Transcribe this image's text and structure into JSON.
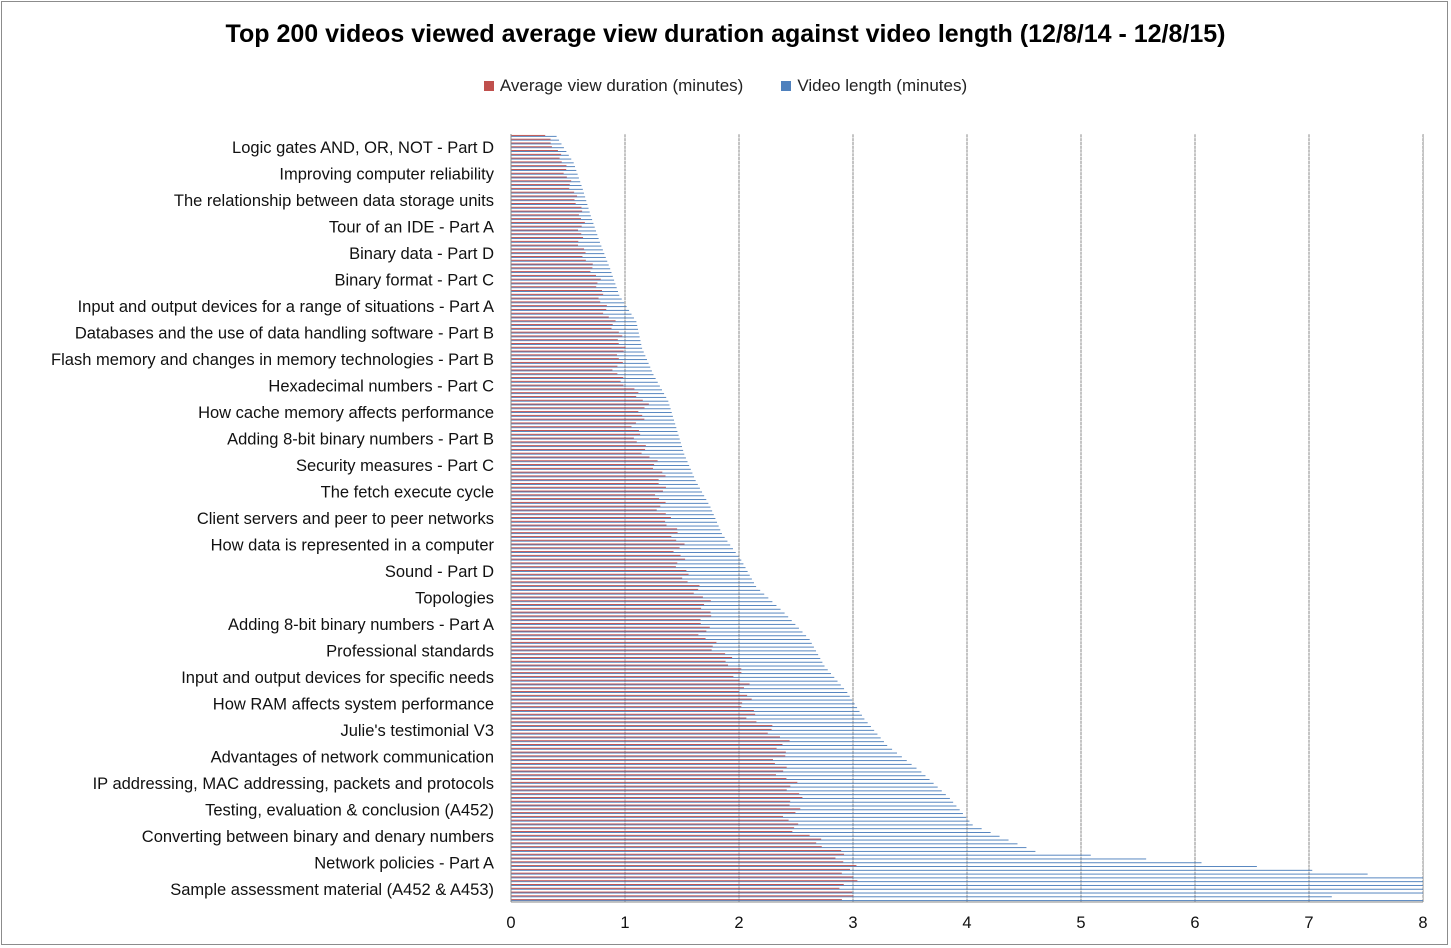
{
  "chart_data": {
    "type": "bar",
    "orientation": "horizontal",
    "title": "Top 200 videos viewed average view duration against video length (12/8/14 - 12/8/15)",
    "legend_position": "top",
    "xlim": [
      0,
      8
    ],
    "x_ticks": [
      0,
      1,
      2,
      3,
      4,
      5,
      6,
      7,
      8
    ],
    "grid": "vertical",
    "colors": {
      "avg": "#c0504d",
      "len": "#4f81bd"
    },
    "series": [
      {
        "name": "Average view duration (minutes)",
        "key": "avg"
      },
      {
        "name": "Video length (minutes)",
        "key": "len"
      }
    ],
    "categories": [
      "Logic gates AND, OR, NOT - Part D",
      "Improving computer reliability",
      "The relationship between data storage units",
      "Tour of an IDE - Part A",
      "Binary data - Part D",
      "Binary format - Part C",
      "Input and output devices for a range of situations - Part A",
      "Databases and the use of data handling software - Part B",
      "Flash memory and changes in memory technologies - Part B",
      "Hexadecimal numbers - Part C",
      "How cache memory affects performance",
      "Adding 8-bit binary numbers - Part B",
      "Security measures - Part C",
      "The fetch execute cycle",
      "Client servers and peer to peer networks",
      "How data is represented in a computer",
      "Sound - Part D",
      "Topologies",
      "Adding 8-bit binary numbers - Part A",
      "Professional standards",
      "Input and output devices for specific needs",
      "How RAM affects system performance",
      "Julie's testimonial V3",
      "Advantages of network communication",
      "IP addressing, MAC addressing, packets and protocols",
      "Testing, evaluation & conclusion (A452)",
      "Converting between binary and denary numbers",
      "Network policies - Part A",
      "Sample assessment material (A452 & A453)"
    ],
    "bars_per_category": 7,
    "avg_profile": [
      0.3,
      0.45,
      0.55,
      0.6,
      0.62,
      0.7,
      0.78,
      0.9,
      0.95,
      0.95,
      1.15,
      1.1,
      1.2,
      1.3,
      1.35,
      1.4,
      1.5,
      1.6,
      1.7,
      1.75,
      1.9,
      2.1,
      2.1,
      2.4,
      2.4,
      2.45,
      2.5,
      2.8,
      3.0
    ],
    "len_profile": [
      0.4,
      0.55,
      0.63,
      0.7,
      0.78,
      0.87,
      0.95,
      1.1,
      1.15,
      1.25,
      1.38,
      1.45,
      1.52,
      1.62,
      1.75,
      1.85,
      2.02,
      2.15,
      2.4,
      2.62,
      2.75,
      2.95,
      3.1,
      3.3,
      3.6,
      3.85,
      4.05,
      4.6,
      8.0
    ]
  }
}
